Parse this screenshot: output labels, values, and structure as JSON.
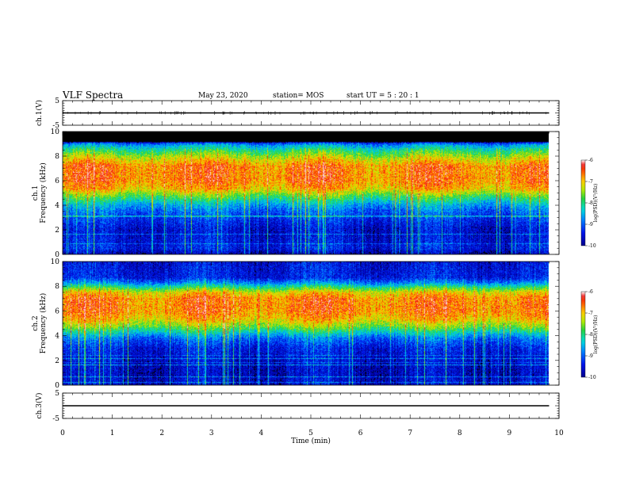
{
  "header": {
    "title": "VLF Spectra",
    "date": "May 23, 2020",
    "station": "station= MOS",
    "start": "start  UT  =   5  : 20 : 1"
  },
  "chart_data": [
    {
      "id": "ch1_waveform",
      "type": "line",
      "ylabel": "ch.1(V)",
      "ylim": [
        -5,
        5
      ],
      "yticks": [
        "5",
        "-5"
      ],
      "xlim": [
        0,
        10
      ],
      "series": [
        {
          "x": [
            0,
            9.8
          ],
          "y": [
            0,
            0
          ]
        }
      ]
    },
    {
      "id": "ch1_spectrogram",
      "type": "heatmap",
      "ylabel": "ch.1\nFrequency  (kHz)",
      "ylim": [
        0,
        10
      ],
      "yticks": [
        "0",
        "2",
        "4",
        "6",
        "8",
        "10"
      ],
      "xlim": [
        0,
        10
      ],
      "colorbar": {
        "label": "log(PSD)(V²/Hz)",
        "ticks": [
          "-6",
          "-7",
          "-8",
          "-9",
          "-10"
        ],
        "range": [
          -10,
          -6
        ]
      },
      "profile": [
        {
          "f": 0.0,
          "v": -9.8
        },
        {
          "f": 0.5,
          "v": -9.4
        },
        {
          "f": 1.0,
          "v": -9.5
        },
        {
          "f": 2.0,
          "v": -9.6
        },
        {
          "f": 3.0,
          "v": -9.2
        },
        {
          "f": 3.6,
          "v": -8.9
        },
        {
          "f": 4.0,
          "v": -8.6
        },
        {
          "f": 4.7,
          "v": -7.8
        },
        {
          "f": 5.3,
          "v": -7.0
        },
        {
          "f": 6.0,
          "v": -6.7
        },
        {
          "f": 7.2,
          "v": -6.7
        },
        {
          "f": 7.8,
          "v": -7.2
        },
        {
          "f": 8.4,
          "v": -7.9
        },
        {
          "f": 8.9,
          "v": -8.6
        },
        {
          "f": 9.1,
          "v": -9.2
        },
        {
          "f": 9.2,
          "v": -10.5
        },
        {
          "f": 10.0,
          "v": -10.5
        }
      ]
    },
    {
      "id": "ch2_spectrogram",
      "type": "heatmap",
      "ylabel": "ch.2\nFrequency  (kHz)",
      "ylim": [
        0,
        10
      ],
      "yticks": [
        "0",
        "2",
        "4",
        "6",
        "8",
        "10"
      ],
      "xlim": [
        0,
        10
      ],
      "colorbar": {
        "label": "log(PSD)(V²/Hz)",
        "ticks": [
          "-6",
          "-7",
          "-8",
          "-9",
          "-10"
        ],
        "range": [
          -10,
          -6
        ]
      },
      "profile": [
        {
          "f": 0.0,
          "v": -9.6
        },
        {
          "f": 1.0,
          "v": -9.7
        },
        {
          "f": 2.0,
          "v": -9.6
        },
        {
          "f": 3.0,
          "v": -9.4
        },
        {
          "f": 3.8,
          "v": -8.9
        },
        {
          "f": 4.3,
          "v": -8.2
        },
        {
          "f": 4.8,
          "v": -7.5
        },
        {
          "f": 5.3,
          "v": -7.0
        },
        {
          "f": 6.0,
          "v": -6.7
        },
        {
          "f": 7.0,
          "v": -6.7
        },
        {
          "f": 7.5,
          "v": -7.1
        },
        {
          "f": 7.9,
          "v": -7.9
        },
        {
          "f": 8.3,
          "v": -8.8
        },
        {
          "f": 8.7,
          "v": -9.4
        },
        {
          "f": 10.0,
          "v": -9.5
        }
      ]
    },
    {
      "id": "ch3_waveform",
      "type": "line",
      "ylabel": "ch.3(V)",
      "ylim": [
        -5,
        5
      ],
      "yticks": [
        "5",
        "-5"
      ],
      "xlim": [
        0,
        10
      ],
      "xlabel": "Time  (min)",
      "xticks": [
        "0",
        "1",
        "2",
        "3",
        "4",
        "5",
        "6",
        "7",
        "8",
        "9",
        "10"
      ],
      "series": [
        {
          "x": [
            0,
            9.8
          ],
          "y": [
            0,
            0
          ]
        }
      ]
    }
  ]
}
